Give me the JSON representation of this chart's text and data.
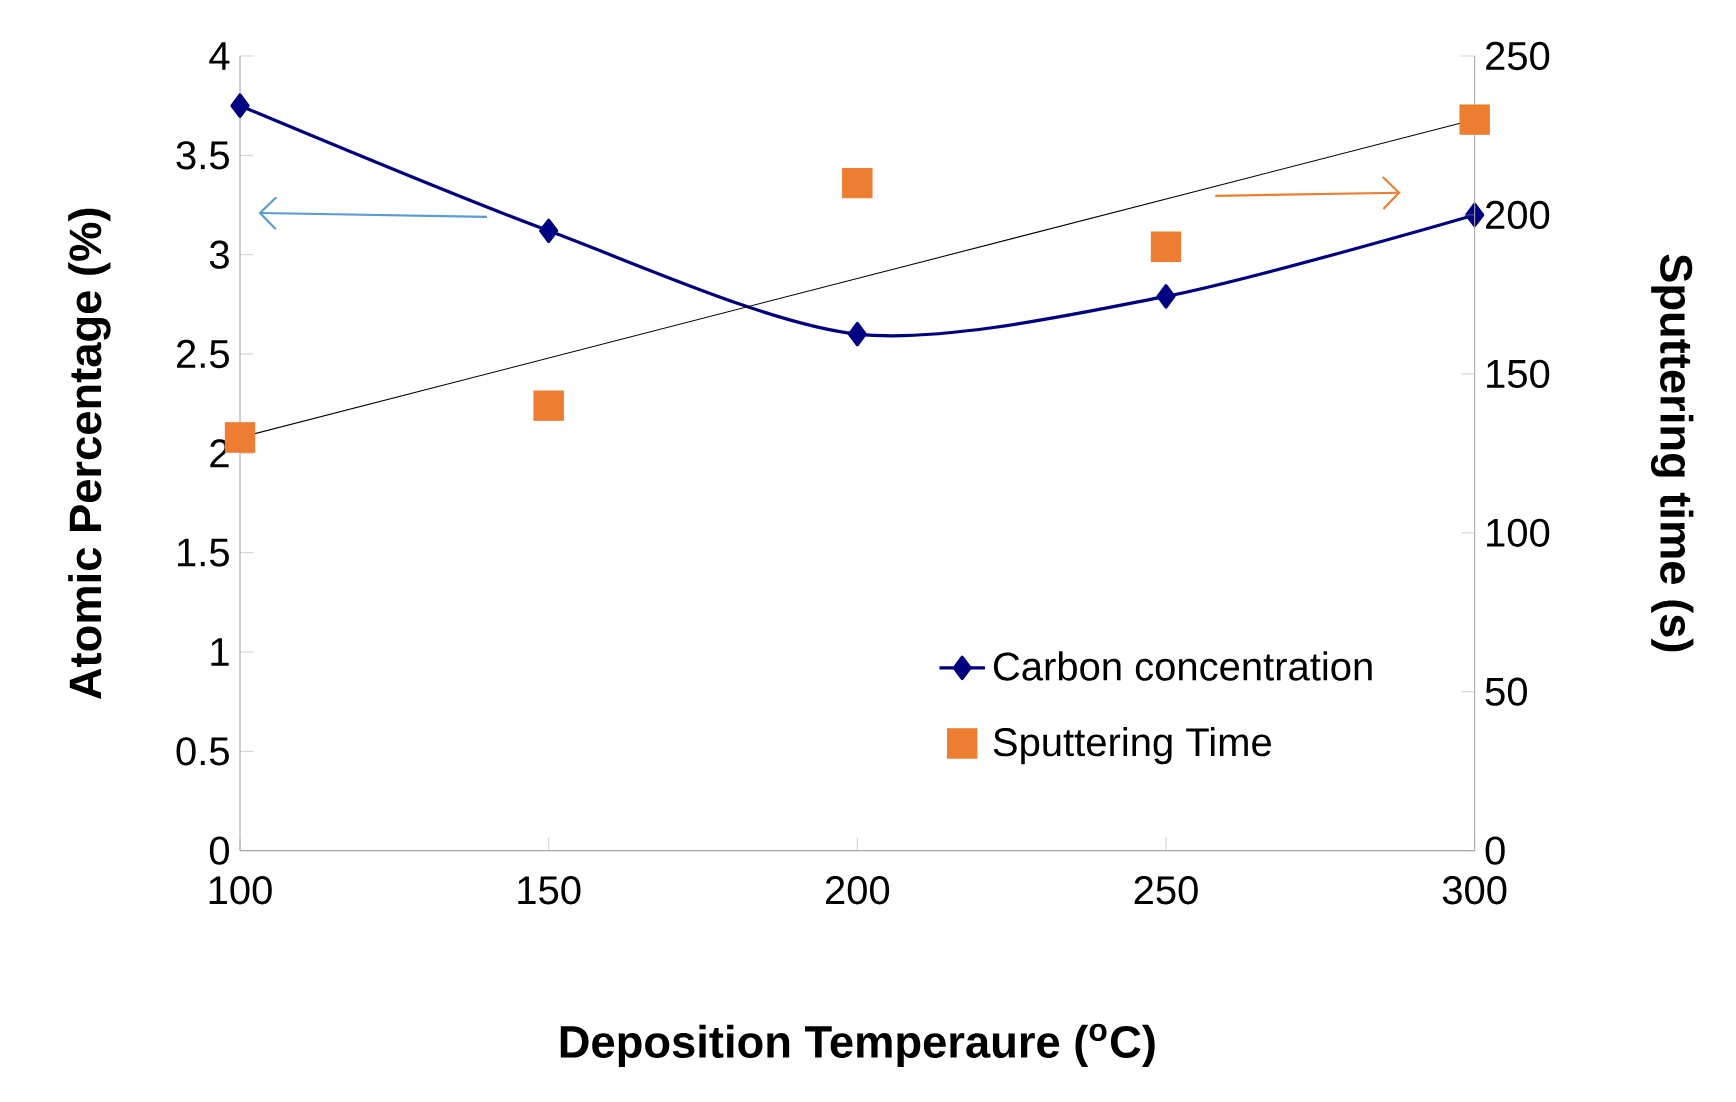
{
  "chart_data": {
    "type": "line",
    "xlabel": "Deposition Temperaure ($^{o}$C)",
    "ylabel": "Atomic Percentage (%)",
    "y2label": "Sputtering time (s)",
    "xlim": [
      100,
      300
    ],
    "xticks": [
      100,
      150,
      200,
      250,
      300
    ],
    "ylim": [
      0,
      4
    ],
    "yticks": [
      0,
      0.5,
      1,
      1.5,
      2,
      2.5,
      3,
      3.5,
      4
    ],
    "y2lim": [
      0,
      250
    ],
    "y2ticks": [
      0,
      50,
      100,
      150,
      200,
      250
    ],
    "legend": "bottom right",
    "grid": false,
    "x": [
      100,
      150,
      200,
      250,
      300
    ],
    "series": [
      {
        "name": "Carbon concentration",
        "color": "#000080",
        "marker": "diamond",
        "values": [
          3.75,
          3.12,
          2.6,
          2.79,
          3.2
        ]
      },
      {
        "name": "Sputtering Time",
        "type": "scatter",
        "axis": "y2",
        "color": "#ed7d31",
        "marker": "square",
        "values": [
          130,
          140,
          210,
          190,
          230
        ]
      },
      {
        "type": "line",
        "axis": "y2",
        "color": "#000000",
        "marker": "none",
        "x": [
          100,
          300
        ],
        "values": [
          130,
          230
        ]
      }
    ]
  }
}
